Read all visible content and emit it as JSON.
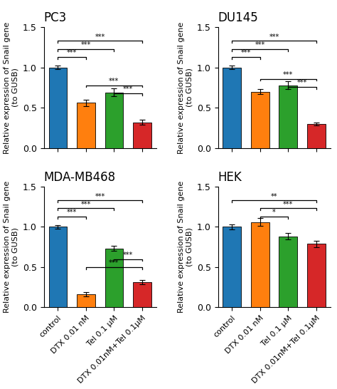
{
  "chart_data": [
    {
      "type": "bar",
      "title": "PC3",
      "categories": [
        "control",
        "DTX 0.01 nM",
        "Tel 0.1 μM",
        "DTX 0.01nM+Tel 0.1μM"
      ],
      "values": [
        1.0,
        0.56,
        0.69,
        0.32
      ],
      "errors": [
        0.02,
        0.04,
        0.05,
        0.03
      ],
      "ylabel": "Relative expression of Snail gene\n(to GUSB)",
      "ylim": [
        0,
        1.5
      ],
      "yticks": [
        {
          "value": 0,
          "label": "0.0"
        },
        {
          "value": 0.5,
          "label": "0.5"
        },
        {
          "value": 1,
          "label": "1.0"
        },
        {
          "value": 1.5,
          "label": "1.5"
        }
      ],
      "tick_labels": "y",
      "sig_brackets": [
        {
          "from": "control",
          "to": "DTX 0.01 nM",
          "y": 1.13,
          "label": "***"
        },
        {
          "from": "control",
          "to": "Tel 0.1 μM",
          "y": 1.23,
          "label": "***"
        },
        {
          "from": "control",
          "to": "DTX 0.01nM+Tel 0.1μM",
          "y": 1.33,
          "label": "***"
        },
        {
          "from": "DTX 0.01 nM",
          "to": "DTX 0.01nM+Tel 0.1μM",
          "y": 0.78,
          "label": "***"
        },
        {
          "from": "Tel 0.1 μM",
          "to": "DTX 0.01nM+Tel 0.1μM",
          "y": 0.68,
          "label": "***"
        }
      ]
    },
    {
      "type": "bar",
      "title": "DU145",
      "categories": [
        "control",
        "DTX 0.01 nM",
        "Tel 0.1 μM",
        "DTX 0.01nM+Tel 0.1μM"
      ],
      "values": [
        1.0,
        0.7,
        0.78,
        0.3
      ],
      "errors": [
        0.02,
        0.03,
        0.05,
        0.02
      ],
      "ylabel": "Relative expression of Snail gene\n(to GUSB)",
      "ylim": [
        0,
        1.5
      ],
      "yticks": [
        {
          "value": 0,
          "label": "0.0"
        },
        {
          "value": 0.5,
          "label": "0.5"
        },
        {
          "value": 1,
          "label": "1.0"
        },
        {
          "value": 1.5,
          "label": "1.5"
        }
      ],
      "tick_labels": "y",
      "sig_brackets": [
        {
          "from": "control",
          "to": "DTX 0.01 nM",
          "y": 1.13,
          "label": "***"
        },
        {
          "from": "control",
          "to": "Tel 0.1 μM",
          "y": 1.23,
          "label": "***"
        },
        {
          "from": "control",
          "to": "DTX 0.01nM+Tel 0.1μM",
          "y": 1.33,
          "label": "***"
        },
        {
          "from": "DTX 0.01 nM",
          "to": "DTX 0.01nM+Tel 0.1μM",
          "y": 0.86,
          "label": "***"
        },
        {
          "from": "Tel 0.1 μM",
          "to": "DTX 0.01nM+Tel 0.1μM",
          "y": 0.76,
          "label": "***"
        }
      ]
    },
    {
      "type": "bar",
      "title": "MDA-MB468",
      "categories": [
        "control",
        "DTX 0.01 nM",
        "Tel 0.1 μM",
        "DTX 0.01nM+Tel 0.1μM"
      ],
      "values": [
        1.0,
        0.16,
        0.73,
        0.31
      ],
      "errors": [
        0.02,
        0.025,
        0.03,
        0.025
      ],
      "ylabel": "Relative expression of Snail gene\n(to GUSB)",
      "ylim": [
        0,
        1.5
      ],
      "yticks": [
        {
          "value": 0,
          "label": "0.0"
        },
        {
          "value": 0.5,
          "label": "0.5"
        },
        {
          "value": 1,
          "label": "1.0"
        },
        {
          "value": 1.5,
          "label": "1.5"
        }
      ],
      "sig_brackets": [
        {
          "from": "control",
          "to": "DTX 0.01 nM",
          "y": 1.13,
          "label": "***"
        },
        {
          "from": "control",
          "to": "Tel 0.1 μM",
          "y": 1.23,
          "label": "***"
        },
        {
          "from": "control",
          "to": "DTX 0.01nM+Tel 0.1μM",
          "y": 1.33,
          "label": "***"
        },
        {
          "from": "DTX 0.01 nM",
          "to": "DTX 0.01nM+Tel 0.1μM",
          "y": 0.5,
          "label": "***"
        },
        {
          "from": "Tel 0.1 μM",
          "to": "DTX 0.01nM+Tel 0.1μM",
          "y": 0.6,
          "label": "***"
        }
      ]
    },
    {
      "type": "bar",
      "title": "HEK",
      "categories": [
        "control",
        "DTX 0.01 nM",
        "Tel 0.1 μM",
        "DTX 0.01nM+Tel 0.1μM"
      ],
      "values": [
        1.0,
        1.06,
        0.88,
        0.79
      ],
      "errors": [
        0.03,
        0.05,
        0.04,
        0.04
      ],
      "ylabel": "Relative expression of Snail gene\n(to GUSB)",
      "ylim": [
        0,
        1.5
      ],
      "yticks": [
        {
          "value": 0,
          "label": "0.0"
        },
        {
          "value": 0.5,
          "label": "0.5"
        },
        {
          "value": 1,
          "label": "1.0"
        },
        {
          "value": 1.5,
          "label": "1.5"
        }
      ],
      "sig_brackets": [
        {
          "from": "DTX 0.01 nM",
          "to": "Tel 0.1 μM",
          "y": 1.13,
          "label": "*"
        },
        {
          "from": "control",
          "to": "DTX 0.01nM+Tel 0.1μM",
          "y": 1.33,
          "label": "**"
        },
        {
          "from": "DTX 0.01 nM",
          "to": "DTX 0.01nM+Tel 0.1μM",
          "y": 1.23,
          "label": "***"
        }
      ]
    }
  ]
}
